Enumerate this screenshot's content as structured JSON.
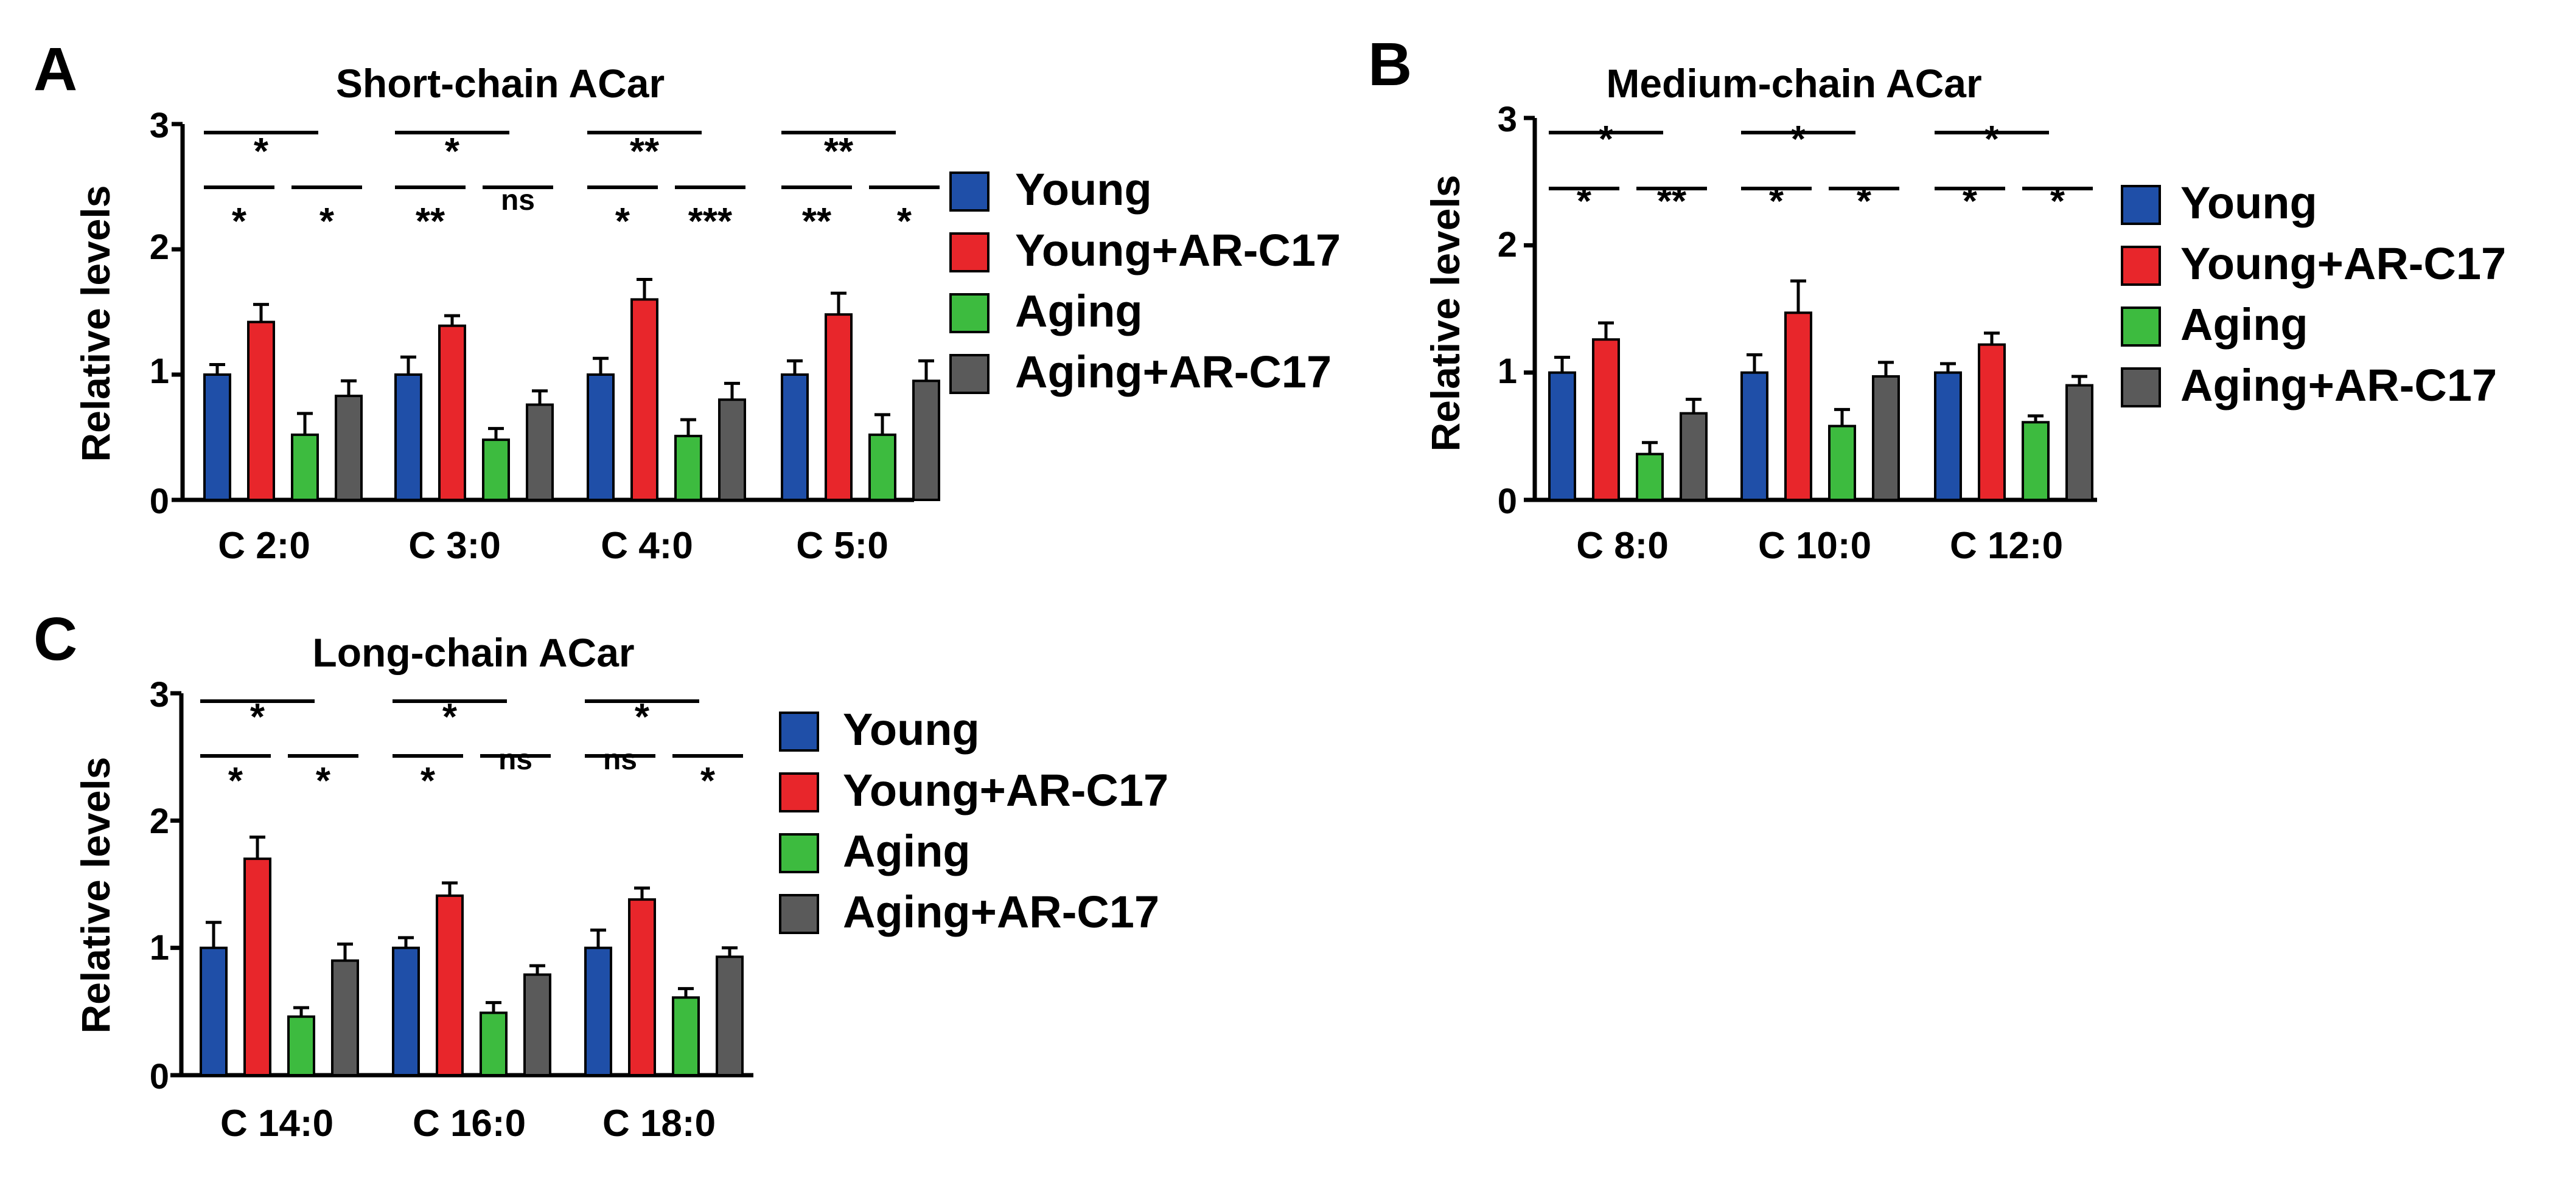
{
  "legend_labels": [
    "Young",
    "Young+AR-C17",
    "Aging",
    "Aging+AR-C17"
  ],
  "series_colors": [
    "#1f4fa8",
    "#e8262b",
    "#3dbb3f",
    "#5a5a5a"
  ],
  "chart_data": [
    {
      "panel": "A",
      "type": "bar",
      "title": "Short-chain ACar",
      "ylabel": "Relative levels",
      "ylim": [
        0,
        3
      ],
      "yticks": [
        "0",
        "1",
        "2",
        "3"
      ],
      "categories": [
        "C 2:0",
        "C 3:0",
        "C 4:0",
        "C 5:0"
      ],
      "series": [
        {
          "name": "Young",
          "values": [
            1.0,
            1.0,
            1.0,
            1.0
          ],
          "errors": [
            0.08,
            0.14,
            0.13,
            0.11
          ]
        },
        {
          "name": "Young+AR-C17",
          "values": [
            1.42,
            1.39,
            1.6,
            1.48
          ],
          "errors": [
            0.14,
            0.08,
            0.16,
            0.17
          ]
        },
        {
          "name": "Aging",
          "values": [
            0.52,
            0.48,
            0.51,
            0.52
          ],
          "errors": [
            0.17,
            0.09,
            0.13,
            0.16
          ]
        },
        {
          "name": "Aging+AR-C17",
          "values": [
            0.83,
            0.76,
            0.8,
            0.95
          ],
          "errors": [
            0.12,
            0.11,
            0.13,
            0.16
          ]
        }
      ],
      "annotations": [
        {
          "top": "*",
          "left": "*",
          "right": "*"
        },
        {
          "top": "*",
          "left": "**",
          "right": "ns"
        },
        {
          "top": "**",
          "left": "*",
          "right": "***"
        },
        {
          "top": "**",
          "left": "**",
          "right": "*"
        }
      ]
    },
    {
      "panel": "B",
      "type": "bar",
      "title": "Medium-chain ACar",
      "ylabel": "Relative levels",
      "ylim": [
        0,
        3
      ],
      "yticks": [
        "0",
        "1",
        "2",
        "3"
      ],
      "categories": [
        "C 8:0",
        "C 10:0",
        "C 12:0"
      ],
      "series": [
        {
          "name": "Young",
          "values": [
            1.0,
            1.0,
            1.0
          ],
          "errors": [
            0.12,
            0.14,
            0.07
          ]
        },
        {
          "name": "Young+AR-C17",
          "values": [
            1.26,
            1.47,
            1.22
          ],
          "errors": [
            0.13,
            0.25,
            0.09
          ]
        },
        {
          "name": "Aging",
          "values": [
            0.36,
            0.58,
            0.61
          ],
          "errors": [
            0.09,
            0.13,
            0.05
          ]
        },
        {
          "name": "Aging+AR-C17",
          "values": [
            0.68,
            0.97,
            0.9
          ],
          "errors": [
            0.11,
            0.11,
            0.07
          ]
        }
      ],
      "annotations": [
        {
          "top": "*",
          "left": "*",
          "right": "**"
        },
        {
          "top": "*",
          "left": "*",
          "right": "*"
        },
        {
          "top": "*",
          "left": "*",
          "right": "*"
        }
      ]
    },
    {
      "panel": "C",
      "type": "bar",
      "title": "Long-chain ACar",
      "ylabel": "Relative levels",
      "ylim": [
        0,
        3
      ],
      "yticks": [
        "0",
        "1",
        "2",
        "3"
      ],
      "categories": [
        "C 14:0",
        "C 16:0",
        "C 18:0"
      ],
      "series": [
        {
          "name": "Young",
          "values": [
            1.0,
            1.0,
            1.0
          ],
          "errors": [
            0.2,
            0.08,
            0.14
          ]
        },
        {
          "name": "Young+AR-C17",
          "values": [
            1.7,
            1.41,
            1.38
          ],
          "errors": [
            0.17,
            0.1,
            0.09
          ]
        },
        {
          "name": "Aging",
          "values": [
            0.46,
            0.49,
            0.61
          ],
          "errors": [
            0.07,
            0.08,
            0.07
          ]
        },
        {
          "name": "Aging+AR-C17",
          "values": [
            0.9,
            0.79,
            0.93
          ],
          "errors": [
            0.13,
            0.07,
            0.07
          ]
        }
      ],
      "annotations": [
        {
          "top": "*",
          "left": "*",
          "right": "*"
        },
        {
          "top": "*",
          "left": "*",
          "right": "ns"
        },
        {
          "top": "*",
          "left": "ns",
          "right": "*"
        }
      ]
    }
  ]
}
